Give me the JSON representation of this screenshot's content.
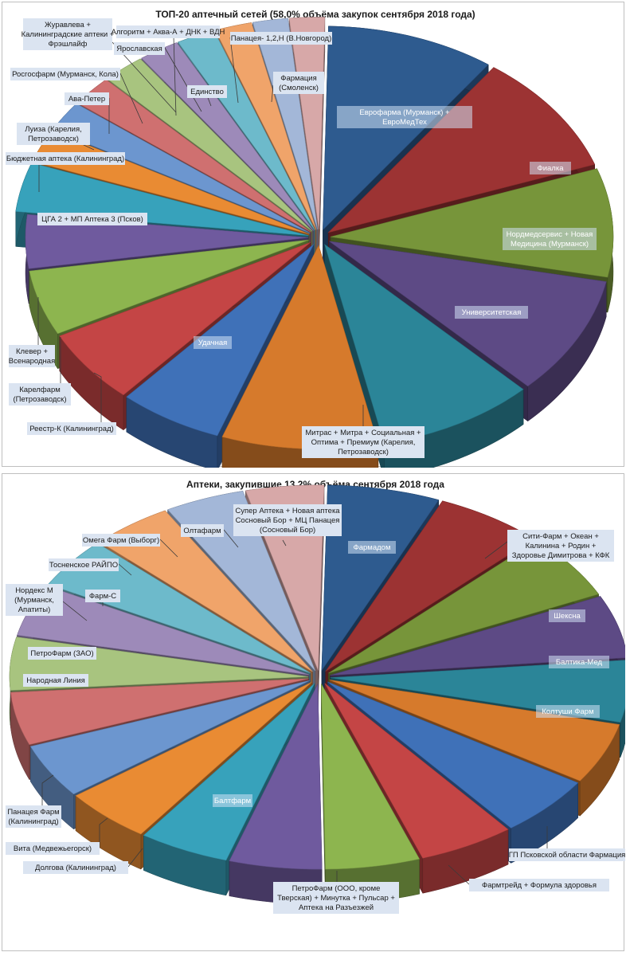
{
  "chart_data": [
    {
      "type": "pie",
      "title": "ТОП-20 аптечный сетей (58,0% объёма закупок сентября 2018 года)",
      "categories": [
        "Еврофарма (Мурманск) + ЕвроМедТех",
        "Фиалка",
        "Нордмедсервис + Новая Медицина (Мурманск)",
        "Университетская",
        "Митрас + Митра + Социальная + Оптима + Премиум (Карелия, Петрозаводск)",
        "Удачная",
        "Реестр-К (Калининград)",
        "Карелфарм (Петрозаводск)",
        "Клевер + Всенародная",
        "ЦГА 2 + МП Аптека 3 (Псков)",
        "Бюджетная аптека (Калининград)",
        "Луиза (Карелия, Петрозаводск)",
        "Ава-Петер",
        "Росгосфарм (Мурманск, Кола)",
        "Журавлева + Калининградские аптеки + Фрэшлайф",
        "Ярославская",
        "Алгоритм + Аква-А + ДНК + ВДН",
        "Единство",
        "Панацея- 1,2,Н (В.Новгород)",
        "Фармация (Смоленск)"
      ],
      "values": [
        9.5,
        9.5,
        8.5,
        9.3,
        8.9,
        8.8,
        5.9,
        5.8,
        5.1,
        4.2,
        3.7,
        2.5,
        2.3,
        2.3,
        2.3,
        2.2,
        2.1,
        2.0,
        1.9,
        1.9
      ],
      "colors": [
        "#2e5b8f",
        "#9c3333",
        "#77953a",
        "#5d4a85",
        "#2b8598",
        "#d67a2c",
        "#3f71b8",
        "#c44545",
        "#8db54f",
        "#6f5a9e",
        "#37a2bb",
        "#e98b33",
        "#6c96cf",
        "#cf7070",
        "#a8c47f",
        "#9d8ab9",
        "#6dbacb",
        "#f0a46a",
        "#a3b7d8",
        "#d7a8a8"
      ]
    },
    {
      "type": "pie",
      "title": "Аптеки, закупившие 13,2% объёма сентября 2018 года",
      "categories": [
        "Фармадом",
        "Сити-Фарм + Океан + Калинина + Родин + Здоровье Димитрова + КФК",
        "Шексна",
        "Балтика-Мед",
        "Колтуши Фарм",
        "ГП Псковской области Фармация",
        "Фармтрейд + Формула здоровья",
        "ПетроФарм (ООО, кроме Тверская) + Минутка + Пульсар + Аптека на Разъезжей",
        "Балтфарм",
        "Долгова (Калининград)",
        "Вита (Медвежьегорск)",
        "Панацея Фарм (Калининград)",
        "Народная Линия",
        "ПетроФарм (ЗАО)",
        "Нордекс М (Мурманск, Апатиты)",
        "Фарм-С",
        "Тосненское РАЙПО",
        "Омега Фарм (Выборг)",
        "Олтафарм",
        "Супер Аптека + Новая аптека Сосновый Бор + МЦ Панацея (Сосновый Бор)"
      ],
      "values": [
        6.2,
        6.0,
        5.8,
        5.6,
        5.5,
        5.4,
        5.4,
        5.3,
        5.2,
        5.1,
        5.0,
        4.9,
        4.8,
        4.7,
        4.7,
        4.6,
        4.5,
        4.5,
        4.4,
        4.3
      ],
      "colors": [
        "#2e5b8f",
        "#9c3333",
        "#77953a",
        "#5d4a85",
        "#2b8598",
        "#d67a2c",
        "#3f71b8",
        "#c44545",
        "#8db54f",
        "#6f5a9e",
        "#37a2bb",
        "#e98b33",
        "#6c96cf",
        "#cf7070",
        "#a8c47f",
        "#9d8ab9",
        "#6dbacb",
        "#f0a46a",
        "#a3b7d8",
        "#d7a8a8"
      ]
    }
  ]
}
